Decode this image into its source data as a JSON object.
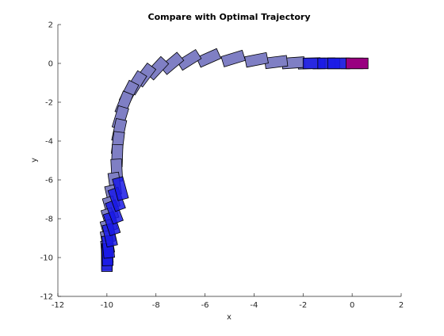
{
  "chart_data": {
    "type": "scatter",
    "title": "Compare with Optimal Trajectory",
    "xlabel": "x",
    "ylabel": "y",
    "xlim": [
      -12,
      2
    ],
    "ylim": [
      -12,
      2
    ],
    "xticks": [
      "-12",
      "-10",
      "-8",
      "-6",
      "-4",
      "-2",
      "0",
      "2"
    ],
    "yticks": [
      "2",
      "0",
      "-2",
      "-4",
      "-6",
      "-8",
      "-10",
      "-12"
    ],
    "grid": false,
    "legend": "none",
    "colors": {
      "trajectory": "#7f7fc4",
      "optimal": "#1a1ae6",
      "goal": "#990080",
      "outline": "#000000",
      "axis": "#262626"
    },
    "series": [
      {
        "poses": [
          {
            "x": 0.0,
            "y": 0.0,
            "theta": 180
          },
          {
            "x": -0.55,
            "y": 0.0,
            "theta": 180
          },
          {
            "x": -1.15,
            "y": 0.0,
            "theta": 181
          },
          {
            "x": -1.75,
            "y": 0.0,
            "theta": 182
          },
          {
            "x": -2.4,
            "y": 0.03,
            "theta": 184
          },
          {
            "x": -3.1,
            "y": 0.07,
            "theta": 187
          },
          {
            "x": -3.9,
            "y": 0.18,
            "theta": 191
          },
          {
            "x": -4.85,
            "y": 0.25,
            "theta": 197
          },
          {
            "x": -5.85,
            "y": 0.28,
            "theta": 204
          },
          {
            "x": -6.65,
            "y": 0.18,
            "theta": 212
          },
          {
            "x": -7.35,
            "y": 0.0,
            "theta": 220
          },
          {
            "x": -7.95,
            "y": -0.25,
            "theta": 227
          },
          {
            "x": -8.45,
            "y": -0.6,
            "theta": 233
          },
          {
            "x": -8.8,
            "y": -1.0,
            "theta": 238
          },
          {
            "x": -9.1,
            "y": -1.5,
            "theta": 243
          },
          {
            "x": -9.3,
            "y": -2.05,
            "theta": 248
          },
          {
            "x": -9.45,
            "y": -2.8,
            "theta": 253
          },
          {
            "x": -9.5,
            "y": -3.45,
            "theta": 258
          },
          {
            "x": -9.55,
            "y": -4.1,
            "theta": 263
          },
          {
            "x": -9.58,
            "y": -4.75,
            "theta": 268
          },
          {
            "x": -9.6,
            "y": -5.5,
            "theta": 273
          },
          {
            "x": -9.68,
            "y": -6.2,
            "theta": 278
          },
          {
            "x": -9.78,
            "y": -6.85,
            "theta": 283
          },
          {
            "x": -9.85,
            "y": -7.45,
            "theta": 286
          },
          {
            "x": -9.9,
            "y": -8.05,
            "theta": 287
          },
          {
            "x": -9.95,
            "y": -8.65,
            "theta": 285
          },
          {
            "x": -9.98,
            "y": -9.2,
            "theta": 280
          },
          {
            "x": -10.0,
            "y": -9.7,
            "theta": 275
          },
          {
            "x": -10.0,
            "y": -10.05,
            "theta": 270
          }
        ]
      },
      {
        "poses": [
          {
            "x": -10.0,
            "y": -10.15,
            "theta": 270
          },
          {
            "x": -9.98,
            "y": -9.85,
            "theta": 272
          },
          {
            "x": -9.95,
            "y": -9.45,
            "theta": 276
          },
          {
            "x": -9.88,
            "y": -8.85,
            "theta": 283
          },
          {
            "x": -9.8,
            "y": -8.25,
            "theta": 288
          },
          {
            "x": -9.7,
            "y": -7.65,
            "theta": 291
          },
          {
            "x": -9.6,
            "y": -7.0,
            "theta": 290
          },
          {
            "x": -9.45,
            "y": -6.45,
            "theta": 285
          },
          {
            "x": -1.55,
            "y": 0.0,
            "theta": 180
          },
          {
            "x": -0.95,
            "y": 0.0,
            "theta": 180
          },
          {
            "x": -0.55,
            "y": 0.0,
            "theta": 180
          }
        ]
      },
      {
        "poses": [
          {
            "x": 0.2,
            "y": 0.0,
            "theta": 180
          }
        ]
      }
    ]
  }
}
